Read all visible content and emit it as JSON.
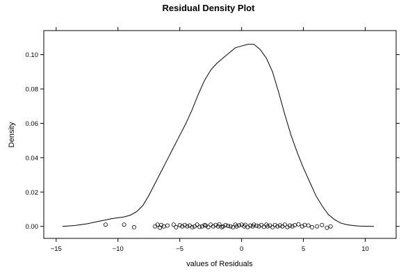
{
  "chart_data": {
    "type": "line",
    "title": "Residual Density Plot",
    "xlabel": "values of Residuals",
    "ylabel": "Density",
    "xlim": [
      -16,
      12.5
    ],
    "ylim": [
      -0.007,
      0.114
    ],
    "xticks": [
      -15,
      -10,
      -5,
      0,
      5,
      10
    ],
    "yticks": [
      0.0,
      0.02,
      0.04,
      0.06,
      0.08,
      0.1
    ],
    "xtick_labels": [
      "−15",
      "−10",
      "−5",
      "0",
      "5",
      "10"
    ],
    "ytick_labels": [
      "0.00",
      "0.02",
      "0.04",
      "0.06",
      "0.08",
      "0.10"
    ],
    "grid": false,
    "series": [
      {
        "kind": "density",
        "x": [
          -14.5,
          -13.5,
          -12.5,
          -11.5,
          -10.5,
          -10.0,
          -9.5,
          -9.0,
          -8.5,
          -8.0,
          -7.5,
          -7.0,
          -6.5,
          -6.0,
          -5.5,
          -5.0,
          -4.5,
          -4.0,
          -3.5,
          -3.0,
          -2.5,
          -2.0,
          -1.5,
          -1.0,
          -0.5,
          0.0,
          0.5,
          1.0,
          1.5,
          2.0,
          2.5,
          3.0,
          3.5,
          4.0,
          4.5,
          5.0,
          5.5,
          6.0,
          6.5,
          7.0,
          7.5,
          8.0,
          8.5,
          9.0,
          9.5,
          10.0,
          10.7
        ],
        "y": [
          0.0,
          0.0005,
          0.0015,
          0.003,
          0.0045,
          0.005,
          0.0055,
          0.0065,
          0.0085,
          0.012,
          0.018,
          0.025,
          0.032,
          0.039,
          0.046,
          0.053,
          0.06,
          0.068,
          0.077,
          0.085,
          0.091,
          0.095,
          0.098,
          0.101,
          0.104,
          0.105,
          0.106,
          0.106,
          0.103,
          0.098,
          0.09,
          0.078,
          0.065,
          0.053,
          0.043,
          0.034,
          0.026,
          0.018,
          0.012,
          0.007,
          0.004,
          0.002,
          0.001,
          0.0005,
          0.0002,
          0.0001,
          0.0
        ]
      },
      {
        "kind": "rug",
        "x": [
          -11.0,
          -9.5,
          -8.7,
          -7.0,
          -6.8,
          -6.6,
          -6.5,
          -6.3,
          -6.0,
          -5.5,
          -5.3,
          -5.0,
          -4.8,
          -4.6,
          -4.4,
          -4.2,
          -4.0,
          -3.8,
          -3.6,
          -3.4,
          -3.2,
          -3.0,
          -2.9,
          -2.7,
          -2.5,
          -2.3,
          -2.1,
          -1.9,
          -1.8,
          -1.6,
          -1.5,
          -1.3,
          -1.1,
          -0.9,
          -0.7,
          -0.5,
          -0.4,
          -0.2,
          0.0,
          0.2,
          0.3,
          0.5,
          0.7,
          0.9,
          1.0,
          1.2,
          1.4,
          1.6,
          1.8,
          2.0,
          2.1,
          2.3,
          2.5,
          2.7,
          2.9,
          3.1,
          3.3,
          3.5,
          3.7,
          3.9,
          4.1,
          4.3,
          4.6,
          4.9,
          5.1,
          5.4,
          5.7,
          6.1,
          6.5,
          6.9,
          7.2
        ],
        "y": [
          0.001,
          0.001,
          -0.0005,
          0.0,
          0.001,
          -0.0008,
          0.0008,
          0.0,
          0.0005,
          0.001,
          -0.0005,
          0.0007,
          0.0,
          0.0008,
          0.0,
          0.0005,
          -0.0005,
          0.0,
          0.001,
          -0.0003,
          0.0,
          0.0008,
          0.0005,
          -0.0004,
          0.001,
          0.0,
          0.0008,
          0.0,
          0.0012,
          -0.0005,
          0.0,
          0.0008,
          0.0003,
          0.0,
          -0.0005,
          0.001,
          0.0,
          0.0006,
          0.001,
          0.0,
          0.0009,
          -0.0004,
          0.0005,
          0.0,
          0.001,
          0.0004,
          0.0,
          0.0008,
          -0.0003,
          0.001,
          0.0,
          0.0005,
          -0.0005,
          0.0008,
          0.0,
          0.0006,
          0.0,
          0.001,
          -0.0004,
          0.0005,
          0.0,
          0.0007,
          0.0012,
          0.0,
          0.0008,
          0.0005,
          -0.0005,
          0.0,
          0.0008,
          -0.0008,
          0.0
        ]
      }
    ]
  }
}
